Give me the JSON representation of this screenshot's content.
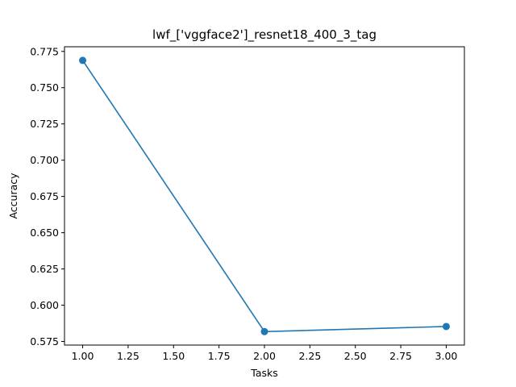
{
  "chart_data": {
    "type": "line",
    "title": "lwf_['vggface2']_resnet18_400_3_tag",
    "xlabel": "Tasks",
    "ylabel": "Accuracy",
    "x": [
      1.0,
      2.0,
      3.0
    ],
    "series": [
      {
        "values": [
          0.7688,
          0.5818,
          0.5853
        ],
        "color": "#1f77b4",
        "marker": "circle"
      }
    ],
    "xlim": [
      0.9,
      3.1
    ],
    "ylim": [
      0.5725,
      0.7782
    ],
    "xticks": [
      "1.00",
      "1.25",
      "1.50",
      "1.75",
      "2.00",
      "2.25",
      "2.50",
      "2.75",
      "3.00"
    ],
    "xtick_values": [
      1.0,
      1.25,
      1.5,
      1.75,
      2.0,
      2.25,
      2.5,
      2.75,
      3.0
    ],
    "yticks": [
      "0.575",
      "0.600",
      "0.625",
      "0.650",
      "0.675",
      "0.700",
      "0.725",
      "0.750",
      "0.775"
    ],
    "ytick_values": [
      0.575,
      0.6,
      0.625,
      0.65,
      0.675,
      0.7,
      0.725,
      0.75,
      0.775
    ],
    "grid": false,
    "legend": "none"
  }
}
